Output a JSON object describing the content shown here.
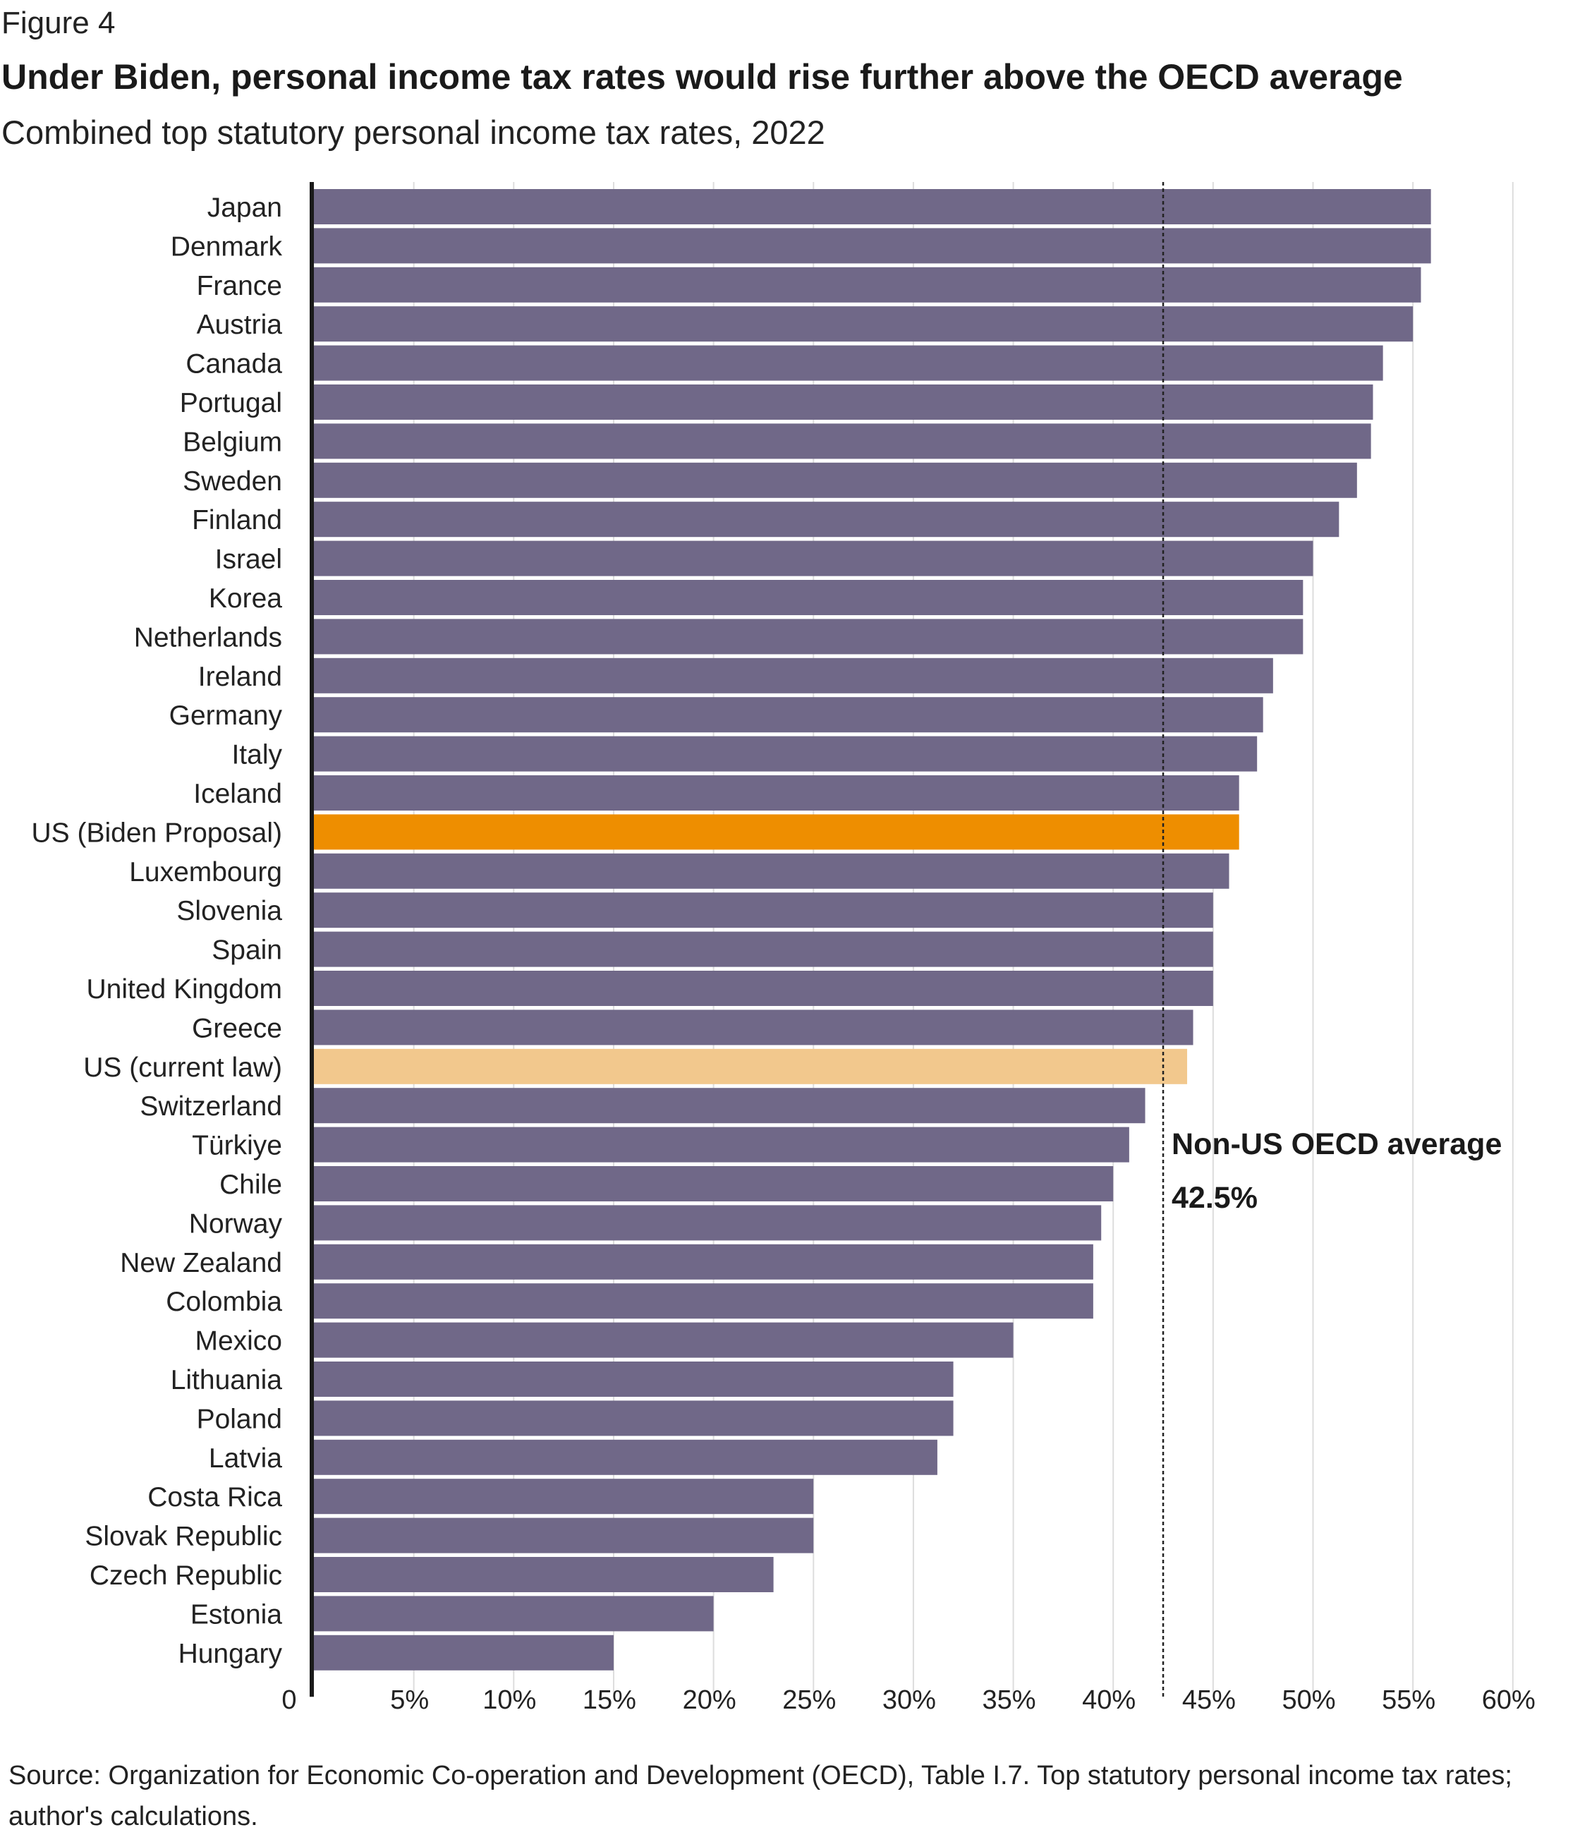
{
  "figure_label": "Figure 4",
  "title": "Under Biden, personal income tax rates would rise further above the OECD average",
  "subtitle": "Combined top statutory personal income tax rates, 2022",
  "source": "Source: Organization for Economic Co-operation and Development (OECD), Table I.7. Top statutory personal income tax rates; author's calculations.",
  "colors": {
    "bar": "#706888",
    "highlight_proposal": "#ee8e00",
    "highlight_current": "#f2c88d",
    "grid": "#dddddd",
    "axis": "#1a1a1a",
    "reference_line": "#222222"
  },
  "chart_data": {
    "type": "bar",
    "orientation": "horizontal",
    "title": "Under Biden, personal income tax rates would rise further above the OECD average",
    "subtitle": "Combined top statutory personal income tax rates, 2022",
    "xlabel": "",
    "ylabel": "",
    "xlim": [
      0,
      65
    ],
    "x_ticks": [
      0,
      5,
      10,
      15,
      20,
      25,
      30,
      35,
      40,
      45,
      50,
      55,
      60
    ],
    "x_tick_labels": [
      "0",
      "5%",
      "10%",
      "15%",
      "20%",
      "25%",
      "30%",
      "35%",
      "40%",
      "45%",
      "50%",
      "55%",
      "60%"
    ],
    "grid": true,
    "categories": [
      "Japan",
      "Denmark",
      "France",
      "Austria",
      "Canada",
      "Portugal",
      "Belgium",
      "Sweden",
      "Finland",
      "Israel",
      "Korea",
      "Netherlands",
      "Ireland",
      "Germany",
      "Italy",
      "Iceland",
      "US (Biden Proposal)",
      "Luxembourg",
      "Slovenia",
      "Spain",
      "United Kingdom",
      "Greece",
      "US (current law)",
      "Switzerland",
      "Türkiye",
      "Chile",
      "Norway",
      "New Zealand",
      "Colombia",
      "Mexico",
      "Lithuania",
      "Poland",
      "Latvia",
      "Costa Rica",
      "Slovak Republic",
      "Czech Republic",
      "Estonia",
      "Hungary"
    ],
    "values": [
      55.9,
      55.9,
      55.4,
      55.0,
      53.5,
      53.0,
      52.9,
      52.2,
      51.3,
      50.0,
      49.5,
      49.5,
      48.0,
      47.5,
      47.2,
      46.3,
      46.3,
      45.8,
      45.0,
      45.0,
      45.0,
      44.0,
      43.7,
      41.6,
      40.8,
      40.0,
      39.4,
      39.0,
      39.0,
      35.0,
      32.0,
      32.0,
      31.2,
      25.0,
      25.0,
      23.0,
      20.0,
      15.0
    ],
    "highlights": {
      "US (Biden Proposal)": "#ee8e00",
      "US (current law)": "#f2c88d"
    },
    "reference_line": {
      "value": 42.5,
      "label": "Non-US OECD average",
      "value_label": "42.5%"
    }
  }
}
